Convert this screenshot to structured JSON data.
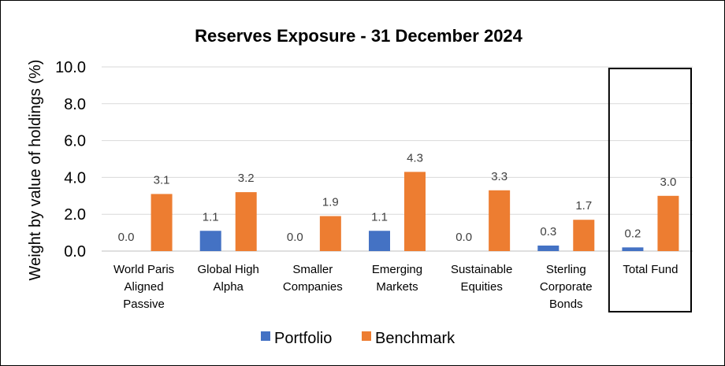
{
  "chart_data": {
    "type": "bar",
    "title": "Reserves Exposure - 31 December 2024",
    "ylabel": "Weight by value of holdings (%)",
    "xlabel": "",
    "ylim": [
      0,
      10
    ],
    "yticks": [
      "0.0",
      "2.0",
      "4.0",
      "6.0",
      "8.0",
      "10.0"
    ],
    "grid": true,
    "legend_position": "bottom",
    "categories": [
      [
        "World Paris",
        "Aligned",
        "Passive"
      ],
      [
        "Global High",
        "Alpha"
      ],
      [
        "Smaller",
        "Companies"
      ],
      [
        "Emerging",
        "Markets"
      ],
      [
        "Sustainable",
        "Equities"
      ],
      [
        "Sterling",
        "Corporate",
        "Bonds"
      ],
      [
        "Total Fund"
      ]
    ],
    "series": [
      {
        "name": "Portfolio",
        "color": "#4472C4",
        "values": [
          0.0,
          1.1,
          0.0,
          1.1,
          0.0,
          0.3,
          0.2
        ],
        "labels": [
          "0.0",
          "1.1",
          "0.0",
          "1.1",
          "0.0",
          "0.3",
          "0.2"
        ]
      },
      {
        "name": "Benchmark",
        "color": "#ED7D31",
        "values": [
          3.1,
          3.2,
          1.9,
          4.3,
          3.3,
          1.7,
          3.0
        ],
        "labels": [
          "3.1",
          "3.2",
          "1.9",
          "4.3",
          "3.3",
          "1.7",
          "3.0"
        ]
      }
    ],
    "highlighted_category": "Total Fund"
  }
}
